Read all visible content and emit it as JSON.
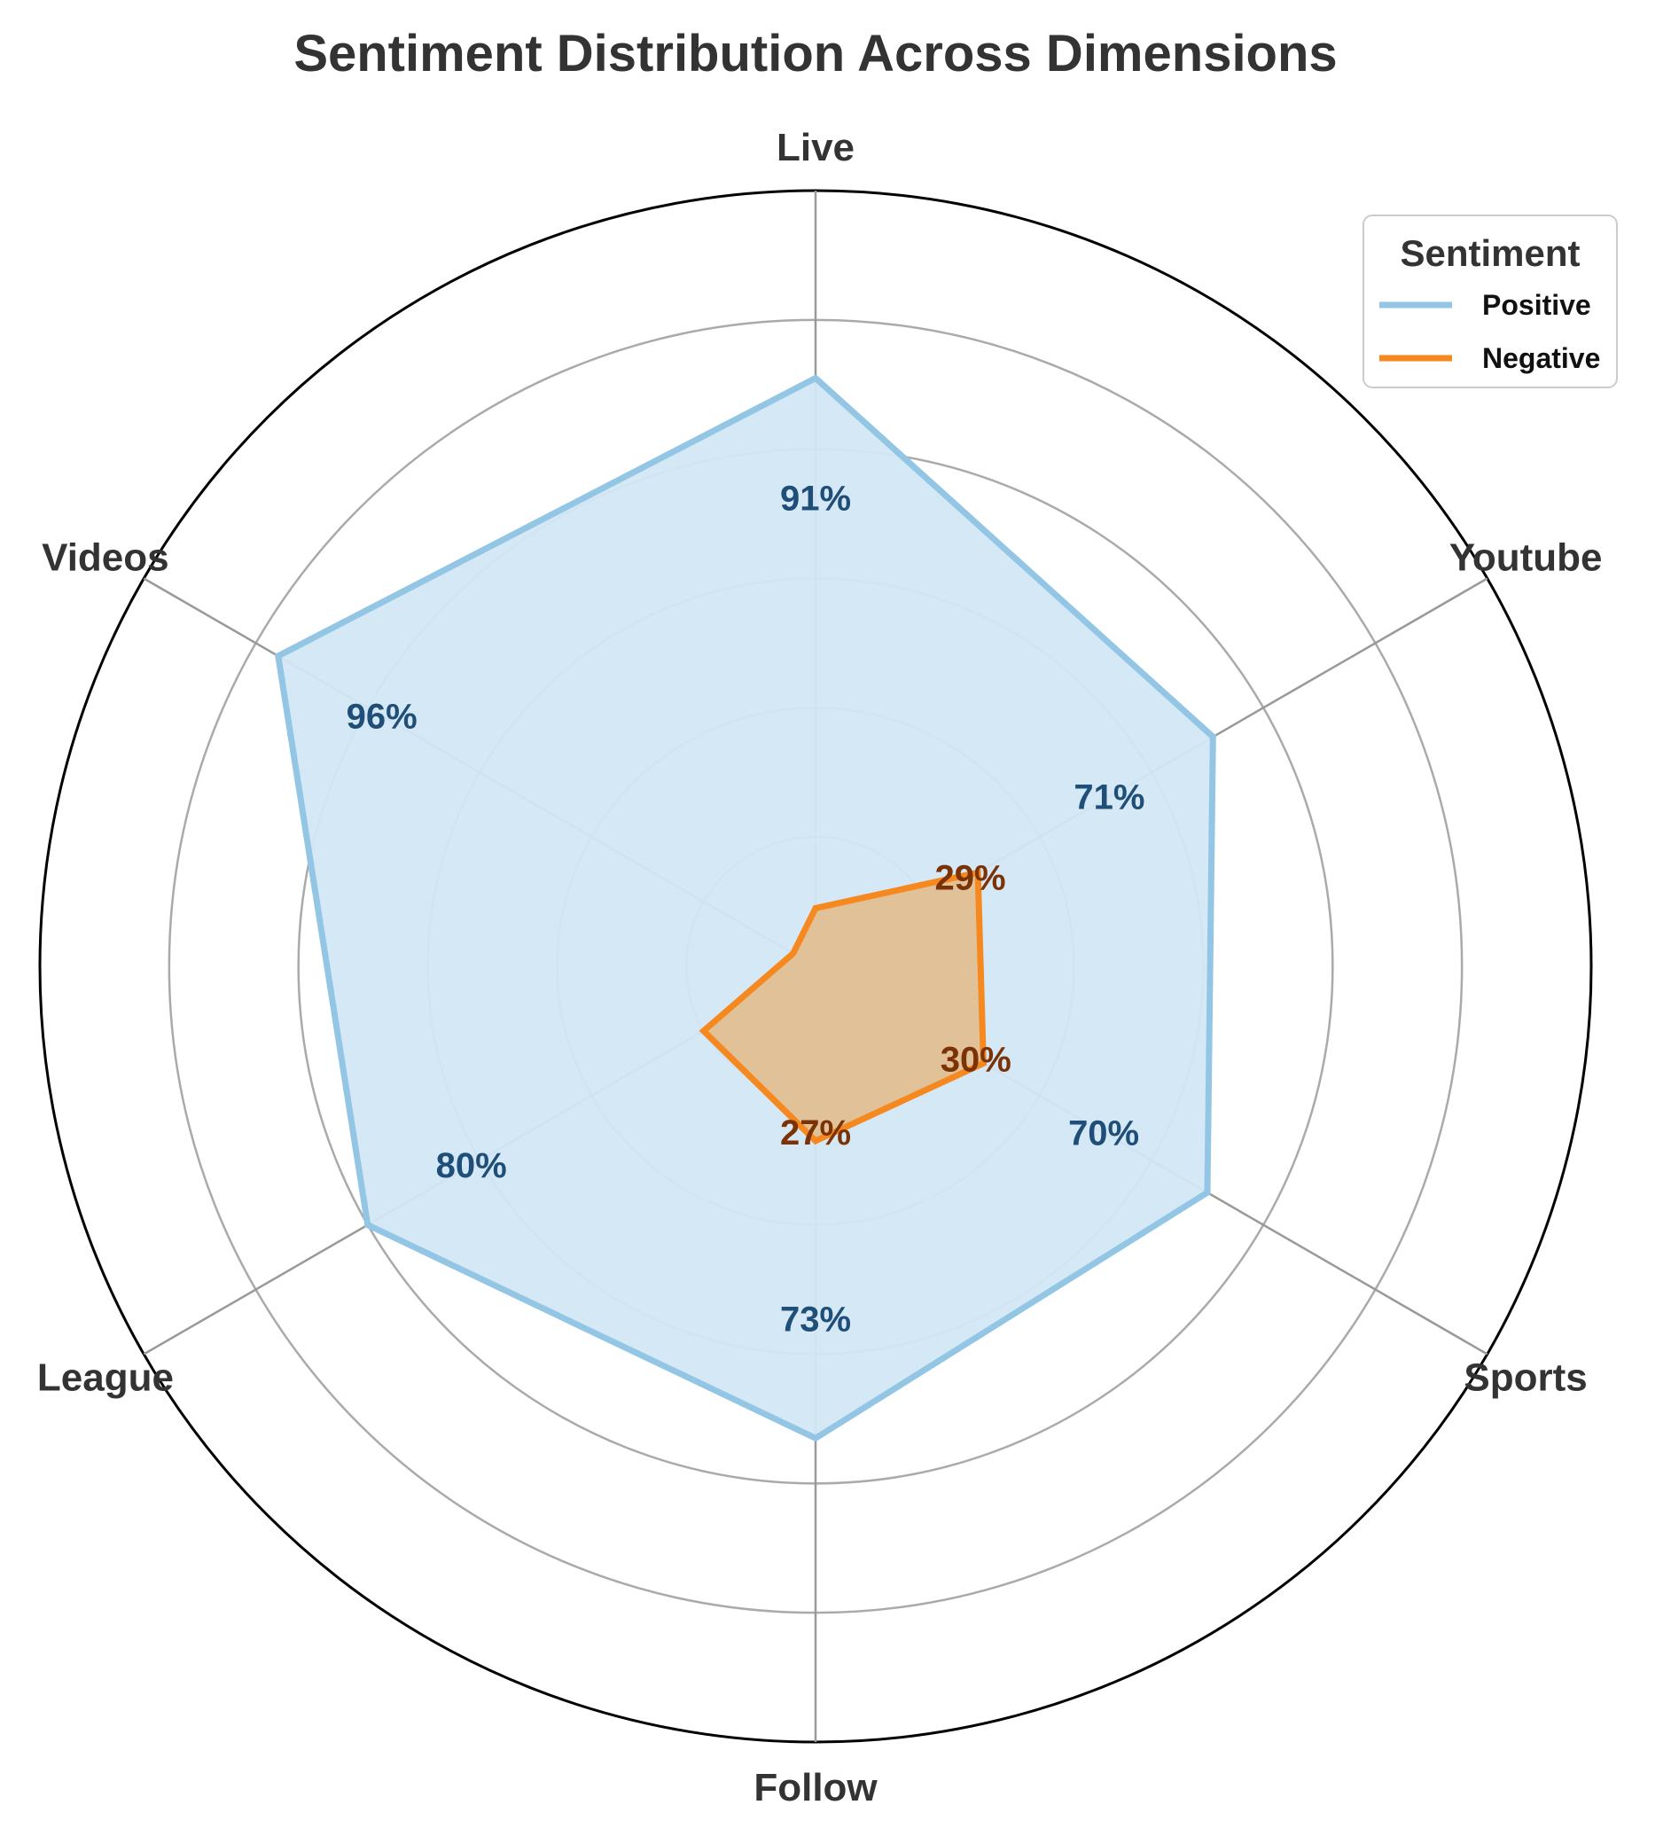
{
  "chart_data": {
    "type": "radar",
    "title": "Sentiment Distribution Across Dimensions",
    "categories": [
      "Live",
      "Youtube",
      "Sports",
      "Follow",
      "League",
      "Videos"
    ],
    "rlim": [
      0,
      120
    ],
    "rgrid": [
      20,
      40,
      60,
      80,
      100,
      120
    ],
    "grid": true,
    "series": [
      {
        "name": "Positive",
        "values": [
          91,
          71,
          70,
          73,
          80,
          96
        ],
        "color": "#93c6e4",
        "fill": "#d3e7f4",
        "label_color": "#1f4e79"
      },
      {
        "name": "Negative",
        "values": [
          9,
          29,
          30,
          27,
          20,
          4
        ],
        "color": "#f5891f",
        "fill": "#e2bf92",
        "label_color": "#7a3206"
      }
    ],
    "value_labels": {
      "Positive": [
        "91%",
        "71%",
        "70%",
        "73%",
        "80%",
        "96%"
      ],
      "Negative": [
        "",
        "29%",
        "30%",
        "27%",
        "",
        ""
      ]
    },
    "legend": {
      "title": "Sentiment",
      "position": "top-right"
    }
  }
}
